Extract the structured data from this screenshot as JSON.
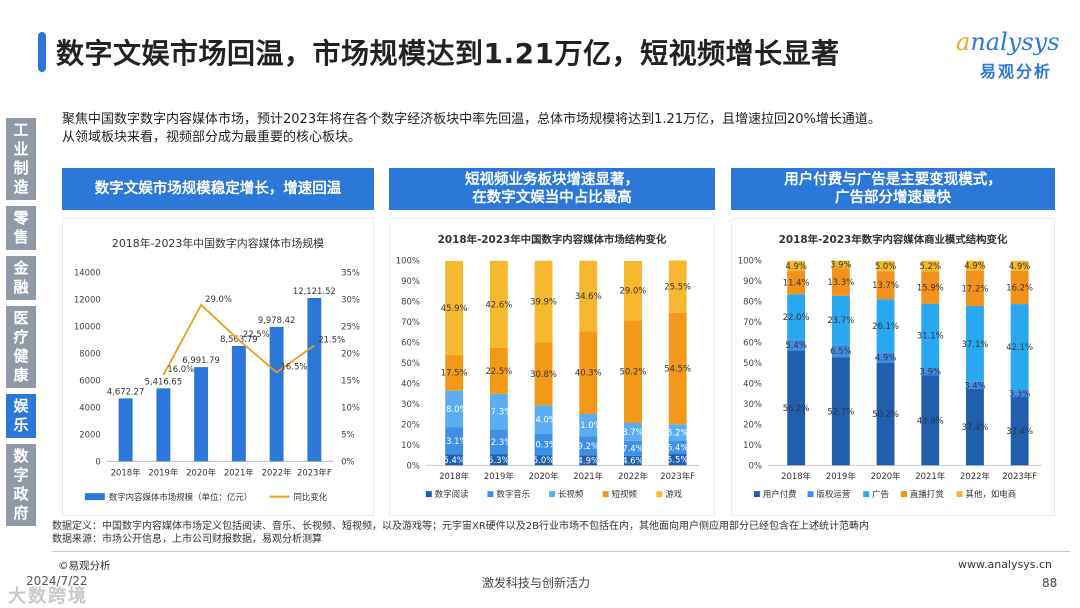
{
  "header": {
    "title": "数字文娱市场回温，市场规模达到1.21万亿，短视频增长显著",
    "logo_text": "nalysys",
    "logo_a": "a",
    "logo_cn": "易观分析"
  },
  "summary": {
    "line1": "聚焦中国数字数字内容媒体市场，预计2023年将在各个数字经济板块中率先回温，总体市场规模将达到1.21万亿，且增速拉回20%增长通道。",
    "line2": "从领域板块来看，视频部分成为最重要的核心板块。"
  },
  "side_nav": [
    {
      "label": "工业制造",
      "active": false
    },
    {
      "label": "零售",
      "active": false
    },
    {
      "label": "金融",
      "active": false
    },
    {
      "label": "医疗健康",
      "active": false
    },
    {
      "label": "娱乐",
      "active": true
    },
    {
      "label": "数字政府",
      "active": false
    }
  ],
  "panels": {
    "p1_title": "数字文娱市场规模稳定增长，增速回温",
    "p2_title_1": "短视频业务板块增速显著，",
    "p2_title_2": "在数字文娱当中占比最高",
    "p3_title_1": "用户付费与广告是主要变现模式，",
    "p3_title_2": "广告部分增速最快"
  },
  "colors": {
    "blue": "#2b78d8",
    "navy": "#1f5fae",
    "mid_blue": "#3e8fe6",
    "light_blue": "#5aaef0",
    "sky": "#29a8f0",
    "orange": "#f29a18",
    "yellow": "#f5b82e",
    "deep_orange": "#f2911b",
    "gray": "#8f9aa6"
  },
  "chart_data": [
    {
      "type": "bar",
      "title": "2018年-2023年中国数字内容媒体市场规模",
      "categories": [
        "2018年",
        "2019年",
        "2020年",
        "2021年",
        "2022年",
        "2023年F"
      ],
      "series": [
        {
          "name": "数字内容媒体市场规模（单位：亿元）",
          "values": [
            4672.27,
            5416.65,
            6991.79,
            8563.79,
            9978.42,
            12121.52
          ],
          "labels": [
            "4,672.27",
            "5,416.65",
            "6,991.79",
            "8,563.79",
            "9,978.42",
            "12,121.52"
          ]
        },
        {
          "name": "同比变化",
          "type": "line",
          "values": [
            null,
            16.0,
            29.0,
            22.5,
            16.5,
            21.5
          ],
          "labels": [
            "",
            "16.0%",
            "29.0%",
            "22.5%",
            "16.5%",
            "21.5%"
          ]
        }
      ],
      "y_left": {
        "ticks": [
          0,
          2000,
          4000,
          6000,
          8000,
          10000,
          12000,
          14000
        ],
        "tick_labels": [
          "0",
          "2000",
          "4000",
          "6000",
          "8000",
          "10000",
          "12000",
          "14000"
        ],
        "ylim": [
          0,
          14000
        ]
      },
      "y_right": {
        "ticks": [
          0,
          5,
          10,
          15,
          20,
          25,
          30,
          35
        ],
        "tick_labels": [
          "0%",
          "5%",
          "10%",
          "15%",
          "20%",
          "25%",
          "30%",
          "35%"
        ],
        "ylim": [
          0,
          35
        ]
      },
      "legend_position": "bottom"
    },
    {
      "type": "bar",
      "stacked": true,
      "title": "2018年-2023年中国数字内容媒体市场结构变化",
      "categories": [
        "2018年",
        "2019年",
        "2020年",
        "2021年",
        "2022年",
        "2023年F"
      ],
      "series": [
        {
          "name": "数字阅读",
          "values": [
            5.4,
            5.3,
            5.0,
            4.9,
            4.6,
            5.5
          ],
          "labels": [
            "5.4%",
            "5.3%",
            "5.0%",
            "4.9%",
            "4.6%",
            "5.5%"
          ]
        },
        {
          "name": "数字音乐",
          "values": [
            13.1,
            12.3,
            10.3,
            9.2,
            7.4,
            6.4
          ],
          "labels": [
            "13.1%",
            "12.3%",
            "10.3%",
            "9.2%",
            "7.4%",
            "6.4%"
          ]
        },
        {
          "name": "长视频",
          "values": [
            18.0,
            17.3,
            14.0,
            11.0,
            8.7,
            8.2
          ],
          "labels": [
            "18.0%",
            "17.3%",
            "14.0%",
            "11.0%",
            "8.7%",
            "8.2%"
          ]
        },
        {
          "name": "短视频",
          "values": [
            17.5,
            22.5,
            30.8,
            40.3,
            50.2,
            54.5
          ],
          "labels": [
            "17.5%",
            "22.5%",
            "30.8%",
            "40.3%",
            "50.2%",
            "54.5%"
          ]
        },
        {
          "name": "游戏",
          "values": [
            45.9,
            42.6,
            39.9,
            34.6,
            29.0,
            25.5
          ],
          "labels": [
            "45.9%",
            "42.6%",
            "39.9%",
            "34.6%",
            "29.0%",
            "25.5%"
          ]
        }
      ],
      "y_ticks": [
        "0%",
        "10%",
        "20%",
        "30%",
        "40%",
        "50%",
        "60%",
        "70%",
        "80%",
        "90%",
        "100%"
      ],
      "ylim": [
        0,
        100
      ],
      "legend_position": "bottom"
    },
    {
      "type": "bar",
      "stacked": true,
      "title": "2018年-2023年数字内容媒体商业模式结构变化",
      "categories": [
        "2018年",
        "2019年",
        "2020年",
        "2021年",
        "2022年",
        "2023年F"
      ],
      "series": [
        {
          "name": "用户付费",
          "values": [
            56.2,
            52.7,
            50.2,
            43.9,
            37.4,
            33.4
          ],
          "labels": [
            "56.2%",
            "52.7%",
            "50.2%",
            "43.9%",
            "37.4%",
            "33.4%"
          ]
        },
        {
          "name": "版权运营",
          "values": [
            5.4,
            6.5,
            4.9,
            3.9,
            3.4,
            3.3
          ],
          "labels": [
            "5.4%",
            "6.5%",
            "4.9%",
            "3.9%",
            "3.4%",
            "3.3%"
          ]
        },
        {
          "name": "广告",
          "values": [
            22.0,
            23.7,
            26.1,
            31.1,
            37.1,
            42.1
          ],
          "labels": [
            "22.0%",
            "23.7%",
            "26.1%",
            "31.1%",
            "37.1%",
            "42.1%"
          ]
        },
        {
          "name": "直播打赏",
          "values": [
            11.4,
            13.3,
            13.7,
            15.9,
            17.2,
            16.2
          ],
          "labels": [
            "11.4%",
            "13.3%",
            "13.7%",
            "15.9%",
            "17.2%",
            "16.2%"
          ]
        },
        {
          "name": "其他，如电商",
          "values": [
            4.9,
            3.9,
            5.0,
            5.2,
            4.9,
            4.9
          ],
          "labels": [
            "4.9%",
            "3.9%",
            "5.0%",
            "5.2%",
            "4.9%",
            "4.9%"
          ]
        }
      ],
      "y_ticks": [
        "0%",
        "10%",
        "20%",
        "30%",
        "40%",
        "50%",
        "60%",
        "70%",
        "80%",
        "90%",
        "100%"
      ],
      "ylim": [
        0,
        100
      ],
      "legend_position": "bottom"
    }
  ],
  "notes": {
    "line1": "数据定义：中国数字内容媒体市场定义包括阅读、音乐、长视频、短视频，以及游戏等；元宇宙XR硬件以及2B行业市场不包括在内，其他面向用户侧应用部分已经包含在上述统计范畴内",
    "line2": "数据来源：市场公开信息，上市公司财报数据，易观分析测算"
  },
  "footer": {
    "source": "©易观分析",
    "date": "2024/7/22",
    "watermark": "大数跨境",
    "center": "激发科技与创新活力",
    "url": "www.analysys.cn",
    "page": "88"
  }
}
